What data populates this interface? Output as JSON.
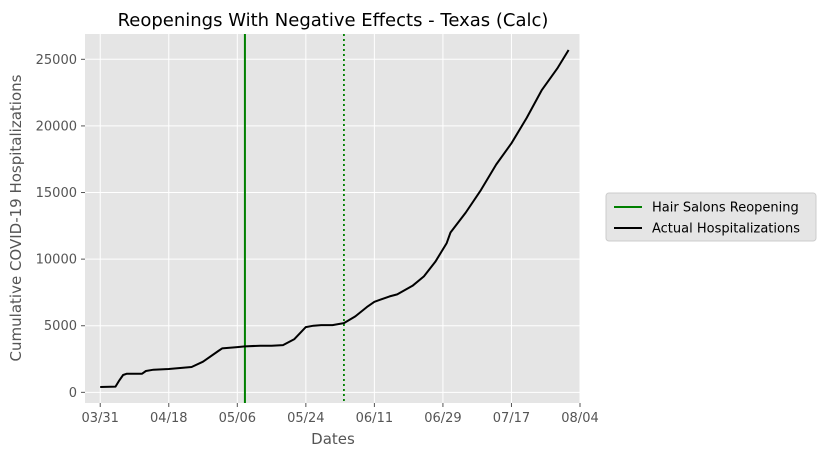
{
  "chart_data": {
    "type": "line",
    "title": "Reopenings With Negative Effects - Texas (Calc)",
    "xlabel": "Dates",
    "ylabel": "Cumulative COVID-19 Hospitalizations",
    "x_tick_labels": [
      "03/31",
      "04/18",
      "05/06",
      "05/24",
      "06/11",
      "06/29",
      "07/17",
      "08/04"
    ],
    "x_ticks": [
      "2020-03-31",
      "2020-04-18",
      "2020-05-06",
      "2020-05-24",
      "2020-06-11",
      "2020-06-29",
      "2020-07-17",
      "2020-08-04"
    ],
    "y_ticks": [
      0,
      5000,
      10000,
      15000,
      20000,
      25000
    ],
    "xlim": [
      "2020-03-27",
      "2020-08-04"
    ],
    "ylim": [
      -800,
      26900
    ],
    "grid": true,
    "legend_position": "right, outside plot",
    "vertical_lines": [
      {
        "date": "2020-05-08",
        "style": "solid",
        "color": "#008000",
        "label": "Hair Salons Reopening"
      },
      {
        "date": "2020-06-03",
        "style": "dotted",
        "color": "#008000"
      }
    ],
    "series": [
      {
        "name": "Actual Hospitalizations",
        "color": "#000000",
        "points": [
          [
            "2020-03-31",
            400
          ],
          [
            "2020-04-04",
            430
          ],
          [
            "2020-04-05",
            900
          ],
          [
            "2020-04-06",
            1300
          ],
          [
            "2020-04-07",
            1400
          ],
          [
            "2020-04-11",
            1400
          ],
          [
            "2020-04-12",
            1600
          ],
          [
            "2020-04-14",
            1700
          ],
          [
            "2020-04-18",
            1750
          ],
          [
            "2020-04-24",
            1900
          ],
          [
            "2020-04-27",
            2300
          ],
          [
            "2020-05-01",
            3100
          ],
          [
            "2020-05-02",
            3300
          ],
          [
            "2020-05-06",
            3400
          ],
          [
            "2020-05-08",
            3450
          ],
          [
            "2020-05-12",
            3500
          ],
          [
            "2020-05-15",
            3500
          ],
          [
            "2020-05-18",
            3550
          ],
          [
            "2020-05-21",
            4000
          ],
          [
            "2020-05-24",
            4900
          ],
          [
            "2020-05-26",
            5000
          ],
          [
            "2020-05-28",
            5050
          ],
          [
            "2020-05-31",
            5050
          ],
          [
            "2020-06-03",
            5200
          ],
          [
            "2020-06-06",
            5700
          ],
          [
            "2020-06-09",
            6400
          ],
          [
            "2020-06-11",
            6800
          ],
          [
            "2020-06-15",
            7200
          ],
          [
            "2020-06-17",
            7350
          ],
          [
            "2020-06-21",
            8000
          ],
          [
            "2020-06-24",
            8700
          ],
          [
            "2020-06-27",
            9800
          ],
          [
            "2020-06-30",
            11200
          ],
          [
            "2020-07-01",
            12000
          ],
          [
            "2020-07-05",
            13500
          ],
          [
            "2020-07-09",
            15200
          ],
          [
            "2020-07-13",
            17100
          ],
          [
            "2020-07-17",
            18700
          ],
          [
            "2020-07-21",
            20600
          ],
          [
            "2020-07-25",
            22700
          ],
          [
            "2020-07-29",
            24300
          ],
          [
            "2020-08-01",
            25700
          ]
        ]
      }
    ],
    "legend": [
      {
        "label": "Hair Salons Reopening",
        "color": "#008000"
      },
      {
        "label": "Actual Hospitalizations",
        "color": "#000000"
      }
    ]
  }
}
